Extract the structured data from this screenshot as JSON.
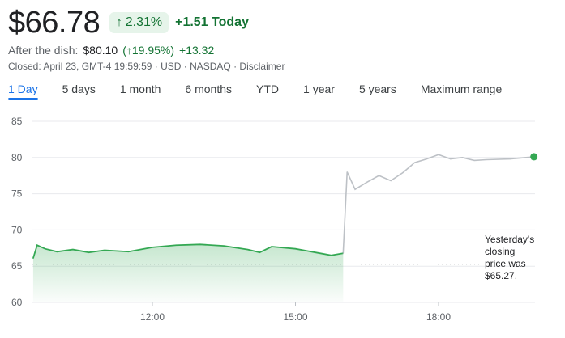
{
  "quote": {
    "price": "$66.78",
    "change_pct": "2.31%",
    "change_today": "+1.51 Today",
    "after_label": "After the dish:",
    "after_value": "$80.10",
    "after_pct": "19.95%",
    "after_delta": "+13.32",
    "closed_line": "Closed: April 23, GMT-4 19:59:59 · USD · NASDAQ · Disclaimer"
  },
  "tabs": [
    "1 Day",
    "5 days",
    "1 month",
    "6 months",
    "YTD",
    "1 year",
    "5 years",
    "Maximum range"
  ],
  "active_tab": "1 Day",
  "note": {
    "line1": "Yesterday's",
    "line2": "closing",
    "line3": "price was",
    "line4": "$65.27."
  },
  "colors": {
    "regular_line": "#34a853",
    "after_line": "#bdc1c6",
    "badge_bg": "#e6f4ea",
    "green_text": "#137333",
    "tab_active": "#1a73e8"
  },
  "chart_data": {
    "type": "line",
    "ylim": [
      60,
      85
    ],
    "yticks": [
      60,
      65,
      70,
      75,
      80,
      85
    ],
    "xticks": [
      "12:00",
      "15:00",
      "18:00"
    ],
    "previous_close": 65.27,
    "series": [
      {
        "session": "regular",
        "values": [
          [
            "09:30",
            66.1
          ],
          [
            "09:35",
            67.9
          ],
          [
            "09:45",
            67.4
          ],
          [
            "10:00",
            67.0
          ],
          [
            "10:20",
            67.3
          ],
          [
            "10:40",
            66.9
          ],
          [
            "11:00",
            67.2
          ],
          [
            "11:30",
            67.0
          ],
          [
            "12:00",
            67.6
          ],
          [
            "12:30",
            67.9
          ],
          [
            "13:00",
            68.0
          ],
          [
            "13:30",
            67.8
          ],
          [
            "14:00",
            67.3
          ],
          [
            "14:15",
            66.9
          ],
          [
            "14:30",
            67.7
          ],
          [
            "15:00",
            67.4
          ],
          [
            "15:30",
            66.8
          ],
          [
            "15:45",
            66.5
          ],
          [
            "16:00",
            66.78
          ]
        ]
      },
      {
        "session": "after-hours",
        "values": [
          [
            "16:00",
            66.78
          ],
          [
            "16:05",
            78.0
          ],
          [
            "16:15",
            75.6
          ],
          [
            "16:30",
            76.6
          ],
          [
            "16:45",
            77.5
          ],
          [
            "17:00",
            76.8
          ],
          [
            "17:15",
            77.9
          ],
          [
            "17:30",
            79.3
          ],
          [
            "17:45",
            79.8
          ],
          [
            "18:00",
            80.4
          ],
          [
            "18:15",
            79.8
          ],
          [
            "18:30",
            80.0
          ],
          [
            "18:45",
            79.6
          ],
          [
            "19:00",
            79.7
          ],
          [
            "19:30",
            79.8
          ],
          [
            "20:00",
            80.1
          ]
        ]
      }
    ]
  }
}
